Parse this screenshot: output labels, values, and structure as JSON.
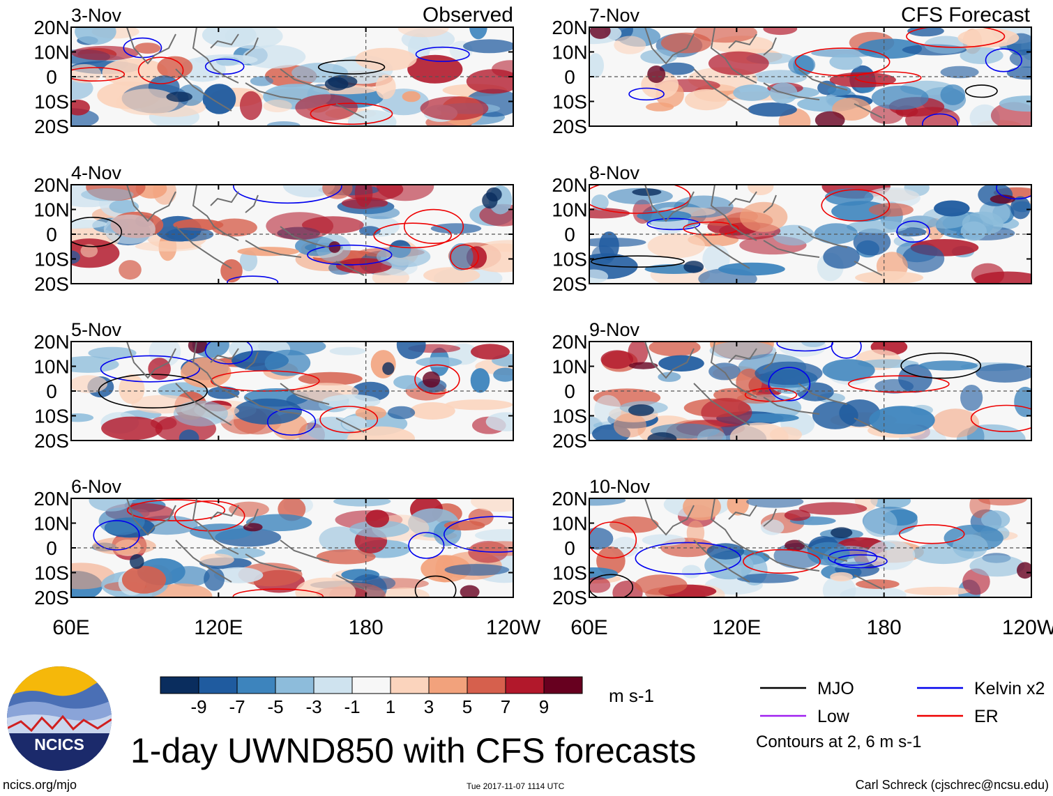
{
  "page": {
    "title": "1-day UWND850 with CFS forecasts",
    "site": "ncics.org/mjo",
    "timestamp": "Tue 2017-11-07 1114 UTC",
    "credit": "Carl Schreck (cjschrec@ncsu.edu)",
    "logo_text": "NCICS"
  },
  "columns": {
    "left": "Observed",
    "right": "CFS Forecast"
  },
  "panels_left": [
    "3-Nov",
    "4-Nov",
    "5-Nov",
    "6-Nov"
  ],
  "panels_right": [
    "7-Nov",
    "8-Nov",
    "9-Nov",
    "10-Nov"
  ],
  "lat_labels": [
    "20N",
    "10N",
    "0",
    "10S",
    "20S"
  ],
  "lon_labels": [
    "60E",
    "120E",
    "180",
    "120W"
  ],
  "colorbar": {
    "tick_labels": [
      "-9",
      "-7",
      "-5",
      "-3",
      "-1",
      "1",
      "3",
      "5",
      "7",
      "9"
    ],
    "colors": [
      "#0a2d5e",
      "#1f5b9f",
      "#3d84bd",
      "#8dbcdb",
      "#cfe3ef",
      "#f7f7f7",
      "#fbd4bd",
      "#f2a27c",
      "#d6604d",
      "#b2182b",
      "#67001f"
    ],
    "units": "m s-1"
  },
  "legend": {
    "items": [
      {
        "label": "MJO",
        "color": "#000000"
      },
      {
        "label": "Kelvin x2",
        "color": "#0000ee"
      },
      {
        "label": "Low",
        "color": "#a020f0"
      },
      {
        "label": "ER",
        "color": "#ee0000"
      }
    ],
    "note": "Contours at 2, 6 m s-1"
  },
  "chart_data": {
    "type": "heatmap",
    "title": "1-day UWND850 with CFS forecasts",
    "variable": "850-hPa zonal wind",
    "units": "m s-1",
    "x_range": [
      "60E",
      "120W"
    ],
    "y_range": [
      "20S",
      "20N"
    ],
    "contour_levels": [
      2,
      6
    ],
    "color_levels": [
      -9,
      -7,
      -5,
      -3,
      -1,
      1,
      3,
      5,
      7,
      9
    ],
    "observed_dates": [
      "3-Nov",
      "4-Nov",
      "5-Nov",
      "6-Nov"
    ],
    "forecast_dates": [
      "7-Nov",
      "8-Nov",
      "9-Nov",
      "10-Nov"
    ]
  }
}
